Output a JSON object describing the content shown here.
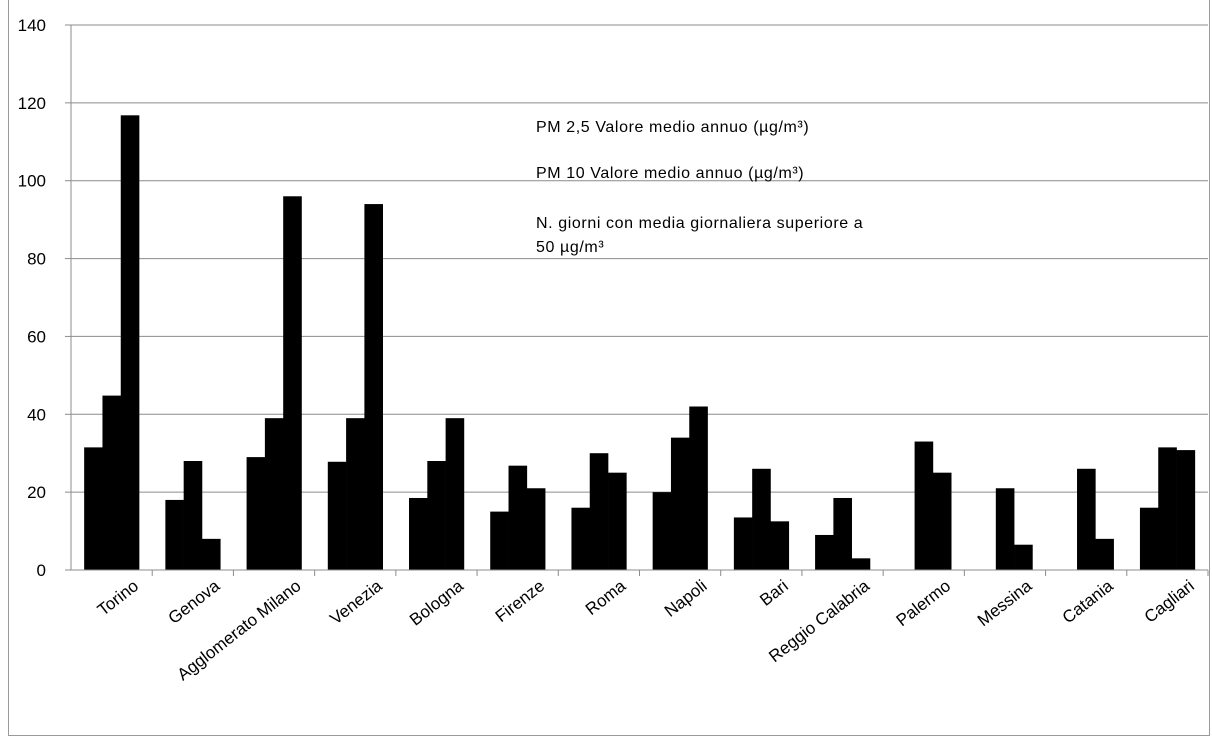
{
  "chart_data": {
    "type": "bar",
    "title": "",
    "xlabel": "",
    "ylabel": "",
    "ylim": [
      0,
      140
    ],
    "yticks": [
      0,
      20,
      40,
      60,
      80,
      100,
      120,
      140
    ],
    "grid": true,
    "legend_position": "top-center",
    "bar_color": "#000000",
    "categories": [
      "Torino",
      "Genova",
      "Agglomerato Milano",
      "Venezia",
      "Bologna",
      "Firenze",
      "Roma",
      "Napoli",
      "Bari",
      "Reggio Calabria",
      "Palermo",
      "Messina",
      "Catania",
      "Cagliari"
    ],
    "series": [
      {
        "name": "PM 2,5 Valore medio annuo (µg/m³)",
        "values": [
          31.5,
          18,
          29,
          27.8,
          18.5,
          15,
          16,
          20,
          13.5,
          9,
          null,
          null,
          null,
          16
        ]
      },
      {
        "name": "PM 10 Valore medio annuo (µg/m³)",
        "values": [
          44.8,
          28,
          39,
          39,
          28,
          26.8,
          30,
          34,
          26,
          18.5,
          33,
          21,
          26,
          31.5
        ]
      },
      {
        "name": "N. giorni con media giornaliera superiore a 50 µg/m³",
        "values": [
          116.8,
          8,
          96,
          94,
          39,
          21,
          25,
          42,
          12.5,
          3,
          25,
          6.5,
          8,
          30.8
        ]
      }
    ],
    "legend_lines": [
      [
        "PM 2,5 Valore medio annuo (µg/m³)"
      ],
      [
        "PM 10 Valore medio annuo (µg/m³)"
      ],
      [
        "N. giorni con media giornaliera superiore a",
        "50 µg/m³"
      ]
    ]
  }
}
